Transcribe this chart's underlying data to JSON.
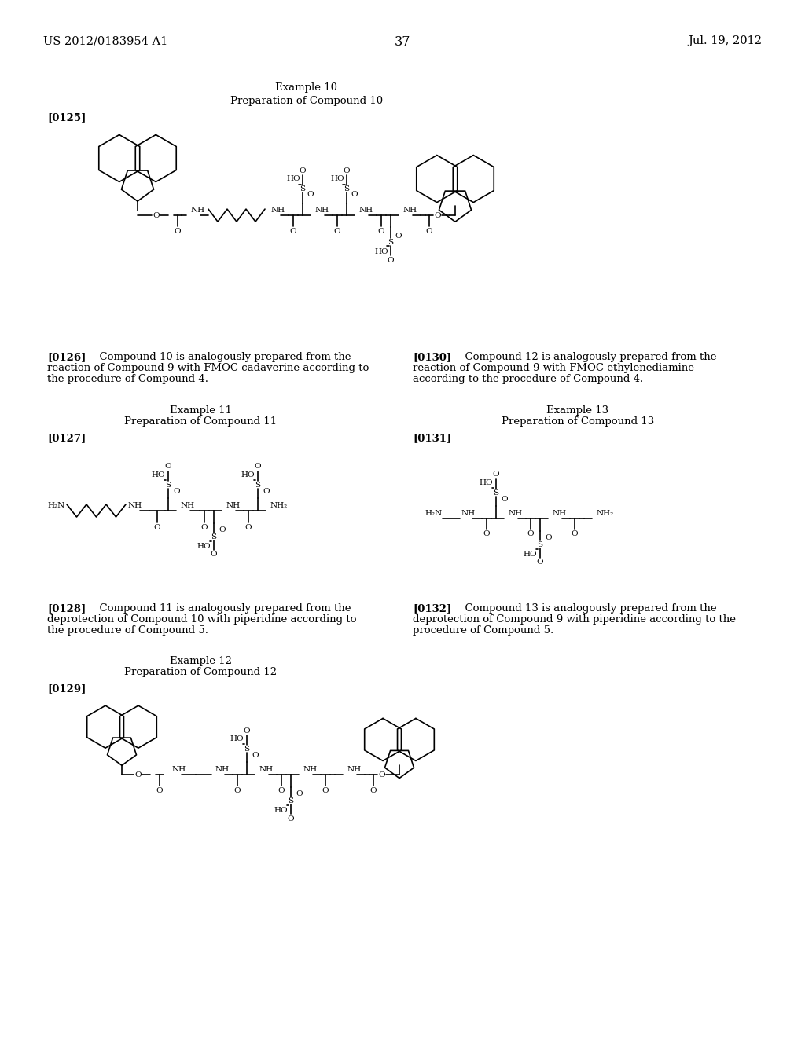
{
  "page_header_left": "US 2012/0183954 A1",
  "page_header_right": "Jul. 19, 2012",
  "page_number": "37",
  "background_color": "#ffffff",
  "figsize": [
    10.24,
    13.2
  ],
  "dpi": 100
}
